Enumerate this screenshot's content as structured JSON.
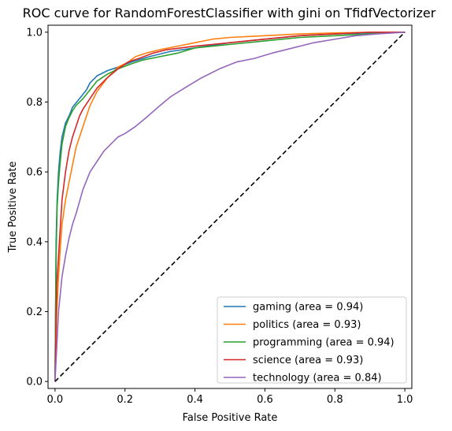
{
  "chart_data": {
    "type": "line",
    "title": "ROC curve for RandomForestClassifier with gini on TfidfVectorizer",
    "xlabel": "False Positive Rate",
    "ylabel": "True Positive Rate",
    "xlim": [
      -0.02,
      1.02
    ],
    "ylim": [
      -0.02,
      1.02
    ],
    "xticks": [
      0.0,
      0.2,
      0.4,
      0.6,
      0.8,
      1.0
    ],
    "yticks": [
      0.0,
      0.2,
      0.4,
      0.6,
      0.8,
      1.0
    ],
    "xtick_labels": [
      "0.0",
      "0.2",
      "0.4",
      "0.6",
      "0.8",
      "1.0"
    ],
    "ytick_labels": [
      "0.0",
      "0.2",
      "0.4",
      "0.6",
      "0.8",
      "1.0"
    ],
    "grid": false,
    "legend_position": "bottom-right",
    "diagonal": {
      "x": [
        0,
        1
      ],
      "y": [
        0,
        1
      ],
      "color": "#000000",
      "style": "dashed"
    },
    "series": [
      {
        "name": "gaming (area = 0.94)",
        "color": "#1f77b4",
        "x": [
          0,
          0.003,
          0.006,
          0.01,
          0.015,
          0.02,
          0.03,
          0.04,
          0.05,
          0.07,
          0.09,
          0.1,
          0.12,
          0.15,
          0.18,
          0.22,
          0.27,
          0.33,
          0.4,
          0.5,
          0.6,
          0.7,
          0.8,
          0.9,
          1.0
        ],
        "y": [
          0,
          0.4,
          0.52,
          0.6,
          0.66,
          0.7,
          0.74,
          0.76,
          0.785,
          0.81,
          0.835,
          0.855,
          0.875,
          0.89,
          0.9,
          0.915,
          0.93,
          0.945,
          0.955,
          0.97,
          0.98,
          0.99,
          0.995,
          0.998,
          1.0
        ]
      },
      {
        "name": "politics (area = 0.93)",
        "color": "#ff7f0e",
        "x": [
          0,
          0.005,
          0.01,
          0.015,
          0.02,
          0.03,
          0.04,
          0.05,
          0.06,
          0.07,
          0.08,
          0.1,
          0.12,
          0.15,
          0.18,
          0.21,
          0.23,
          0.26,
          0.3,
          0.35,
          0.4,
          0.45,
          0.5,
          0.6,
          0.7,
          0.8,
          0.9,
          1.0
        ],
        "y": [
          0,
          0.2,
          0.3,
          0.38,
          0.45,
          0.52,
          0.57,
          0.62,
          0.67,
          0.7,
          0.73,
          0.79,
          0.83,
          0.87,
          0.9,
          0.915,
          0.93,
          0.94,
          0.95,
          0.96,
          0.97,
          0.98,
          0.985,
          0.99,
          0.995,
          0.998,
          1.0,
          1.0
        ]
      },
      {
        "name": "programming (area = 0.94)",
        "color": "#2ca02c",
        "x": [
          0,
          0.003,
          0.006,
          0.01,
          0.015,
          0.02,
          0.03,
          0.04,
          0.05,
          0.06,
          0.08,
          0.1,
          0.12,
          0.15,
          0.18,
          0.22,
          0.25,
          0.3,
          0.35,
          0.4,
          0.5,
          0.6,
          0.7,
          0.8,
          0.9,
          1.0
        ],
        "y": [
          0,
          0.35,
          0.5,
          0.57,
          0.63,
          0.68,
          0.73,
          0.755,
          0.775,
          0.79,
          0.81,
          0.835,
          0.86,
          0.88,
          0.895,
          0.91,
          0.92,
          0.93,
          0.94,
          0.955,
          0.965,
          0.975,
          0.985,
          0.99,
          0.995,
          1.0
        ]
      },
      {
        "name": "science (area = 0.93)",
        "color": "#d62728",
        "x": [
          0,
          0.005,
          0.01,
          0.015,
          0.02,
          0.03,
          0.04,
          0.05,
          0.06,
          0.07,
          0.08,
          0.1,
          0.12,
          0.15,
          0.18,
          0.21,
          0.24,
          0.28,
          0.32,
          0.36,
          0.4,
          0.45,
          0.5,
          0.6,
          0.7,
          0.8,
          0.9,
          1.0
        ],
        "y": [
          0,
          0.28,
          0.36,
          0.44,
          0.52,
          0.6,
          0.66,
          0.7,
          0.73,
          0.76,
          0.78,
          0.81,
          0.84,
          0.87,
          0.895,
          0.915,
          0.925,
          0.94,
          0.95,
          0.955,
          0.96,
          0.965,
          0.97,
          0.98,
          0.99,
          0.995,
          1.0,
          1.0
        ]
      },
      {
        "name": "technology (area = 0.84)",
        "color": "#9467bd",
        "x": [
          0,
          0.005,
          0.01,
          0.015,
          0.02,
          0.03,
          0.04,
          0.05,
          0.06,
          0.08,
          0.1,
          0.12,
          0.14,
          0.16,
          0.18,
          0.2,
          0.23,
          0.26,
          0.3,
          0.33,
          0.37,
          0.42,
          0.47,
          0.52,
          0.57,
          0.62,
          0.68,
          0.74,
          0.8,
          0.86,
          0.92,
          1.0
        ],
        "y": [
          0,
          0.1,
          0.2,
          0.25,
          0.3,
          0.36,
          0.41,
          0.45,
          0.48,
          0.55,
          0.6,
          0.63,
          0.66,
          0.68,
          0.7,
          0.71,
          0.73,
          0.755,
          0.79,
          0.815,
          0.84,
          0.87,
          0.895,
          0.915,
          0.925,
          0.94,
          0.955,
          0.97,
          0.98,
          0.99,
          0.995,
          1.0
        ]
      }
    ]
  }
}
